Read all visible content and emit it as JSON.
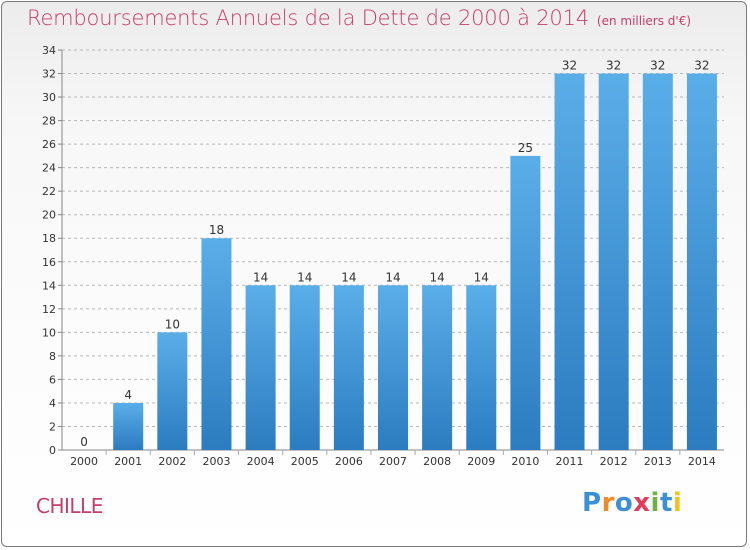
{
  "header": {
    "title": "Remboursements Annuels de la Dette de 2000 à 2014",
    "unit": "(en milliers d'€)"
  },
  "footer": {
    "commune": "CHILLE",
    "logo": {
      "letters": [
        "P",
        "r",
        "o",
        "x",
        "i",
        "t",
        "i"
      ],
      "colors": [
        "#3a8fd6",
        "#f08a24",
        "#3a8fd6",
        "#e23b5a",
        "#6cb33f",
        "#3a8fd6",
        "#f0c419"
      ]
    }
  },
  "chart_data": {
    "type": "bar",
    "title": "Remboursements Annuels de la Dette de 2000 à 2014",
    "subtitle": "(en milliers d'€)",
    "categories": [
      "2000",
      "2001",
      "2002",
      "2003",
      "2004",
      "2005",
      "2006",
      "2007",
      "2008",
      "2009",
      "2010",
      "2011",
      "2012",
      "2013",
      "2014"
    ],
    "values": [
      0,
      4,
      10,
      18,
      14,
      14,
      14,
      14,
      14,
      14,
      25,
      32,
      32,
      32,
      32
    ],
    "data_labels": [
      "0",
      "4",
      "10",
      "18",
      "14",
      "14",
      "14",
      "14",
      "14",
      "14",
      "25",
      "32",
      "32",
      "32",
      "32"
    ],
    "ylim": [
      0,
      34
    ],
    "yticks": [
      0,
      2,
      4,
      6,
      8,
      10,
      12,
      14,
      16,
      18,
      20,
      22,
      24,
      26,
      28,
      30,
      32,
      34
    ],
    "grid": "horizontal dashed",
    "colors": {
      "bar_light": "#5aaee8",
      "bar_dark": "#2b7cc0",
      "text_accent": "#c43d6b"
    }
  }
}
